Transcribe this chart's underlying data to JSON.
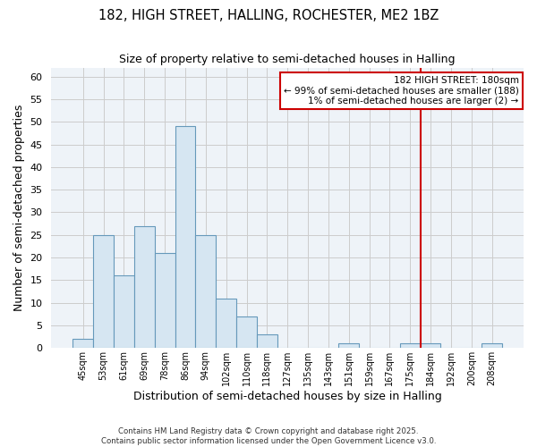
{
  "title": "182, HIGH STREET, HALLING, ROCHESTER, ME2 1BZ",
  "subtitle": "Size of property relative to semi-detached houses in Halling",
  "xlabel": "Distribution of semi-detached houses by size in Halling",
  "ylabel": "Number of semi-detached properties",
  "bar_labels": [
    "45sqm",
    "53sqm",
    "61sqm",
    "69sqm",
    "78sqm",
    "86sqm",
    "94sqm",
    "102sqm",
    "110sqm",
    "118sqm",
    "127sqm",
    "135sqm",
    "143sqm",
    "151sqm",
    "159sqm",
    "167sqm",
    "175sqm",
    "184sqm",
    "192sqm",
    "200sqm",
    "208sqm"
  ],
  "bar_values": [
    2,
    25,
    16,
    27,
    21,
    49,
    25,
    11,
    7,
    3,
    0,
    0,
    0,
    1,
    0,
    0,
    1,
    1,
    0,
    0,
    1
  ],
  "bar_color": "#d6e6f2",
  "bar_edge_color": "#6699bb",
  "vline_color": "#cc0000",
  "annotation_title": "182 HIGH STREET: 180sqm",
  "annotation_line1": "← 99% of semi-detached houses are smaller (188)",
  "annotation_line2": "1% of semi-detached houses are larger (2) →",
  "annotation_box_edge": "#cc0000",
  "ylim": [
    0,
    62
  ],
  "yticks": [
    0,
    5,
    10,
    15,
    20,
    25,
    30,
    35,
    40,
    45,
    50,
    55,
    60
  ],
  "footer1": "Contains HM Land Registry data © Crown copyright and database right 2025.",
  "footer2": "Contains public sector information licensed under the Open Government Licence v3.0.",
  "bg_color": "#ffffff",
  "plot_bg_color": "#eef3f8",
  "grid_color": "#cccccc"
}
